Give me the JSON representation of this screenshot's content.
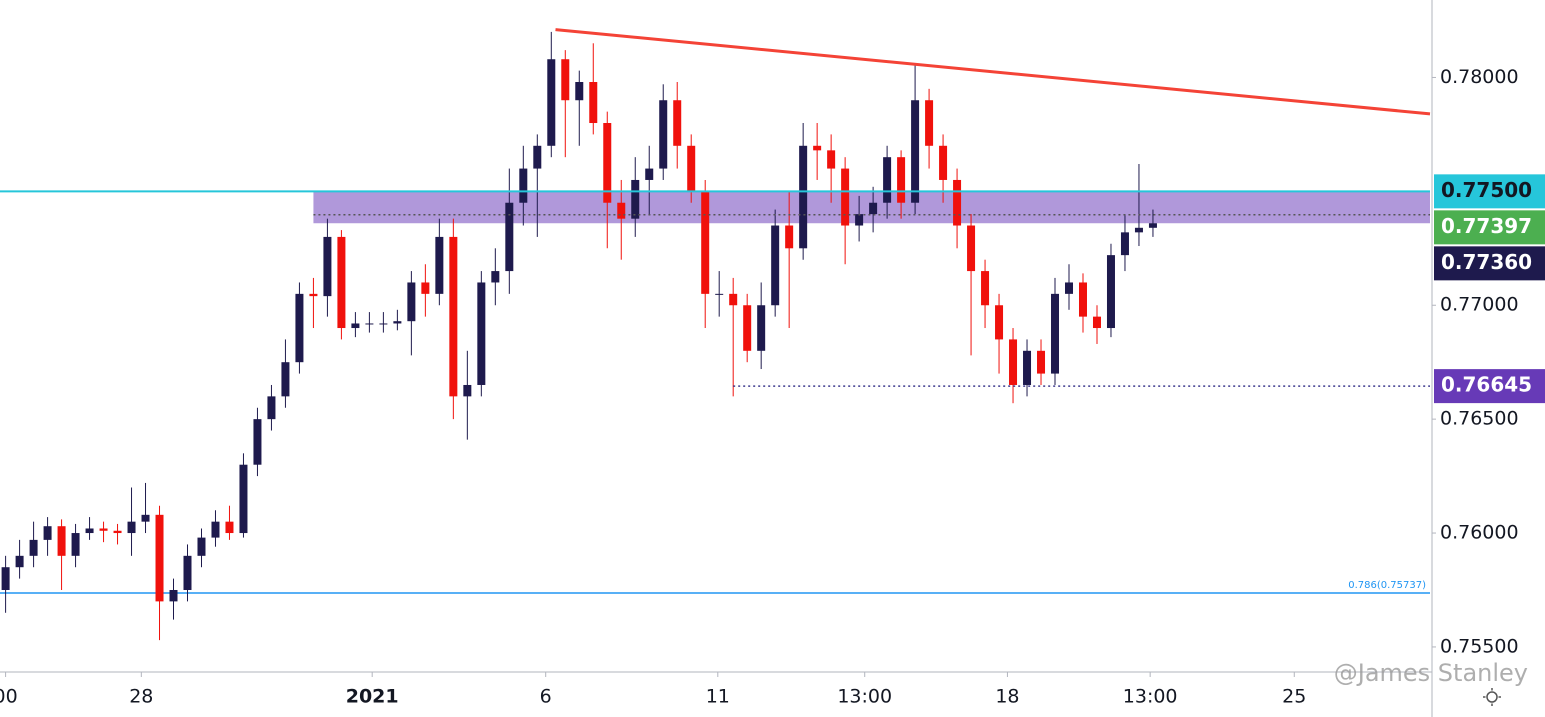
{
  "chart_data": {
    "type": "candlestick",
    "open": [
      0.7575,
      0.7585,
      0.759,
      0.7597,
      0.7603,
      0.759,
      0.76,
      0.7602,
      0.7601,
      0.76,
      0.7605,
      0.7608,
      0.757,
      0.7575,
      0.759,
      0.7598,
      0.7605,
      0.76,
      0.763,
      0.765,
      0.766,
      0.7675,
      0.7705,
      0.7704,
      0.773,
      0.769,
      0.7692,
      0.7692,
      0.7692,
      0.7693,
      0.771,
      0.7705,
      0.773,
      0.766,
      0.7665,
      0.771,
      0.7715,
      0.7745,
      0.776,
      0.777,
      0.7808,
      0.779,
      0.7798,
      0.778,
      0.7745,
      0.7738,
      0.7755,
      0.776,
      0.779,
      0.777,
      0.775,
      0.7705,
      0.7705,
      0.77,
      0.768,
      0.77,
      0.7735,
      0.7725,
      0.777,
      0.7768,
      0.776,
      0.7735,
      0.774,
      0.7745,
      0.7765,
      0.7745,
      0.779,
      0.777,
      0.7755,
      0.7735,
      0.7715,
      0.77,
      0.7685,
      0.7665,
      0.768,
      0.767,
      0.7705,
      0.771,
      0.7695,
      0.769,
      0.7722,
      0.7732,
      0.7734
    ],
    "high": [
      0.759,
      0.7597,
      0.7605,
      0.7607,
      0.7606,
      0.7604,
      0.7607,
      0.7605,
      0.7604,
      0.762,
      0.7622,
      0.7612,
      0.758,
      0.7595,
      0.7602,
      0.761,
      0.7612,
      0.7635,
      0.7655,
      0.7665,
      0.7685,
      0.771,
      0.7712,
      0.7738,
      0.7733,
      0.7697,
      0.7697,
      0.7697,
      0.7698,
      0.7715,
      0.7718,
      0.7738,
      0.7738,
      0.768,
      0.7715,
      0.7725,
      0.776,
      0.777,
      0.7775,
      0.782,
      0.7812,
      0.7803,
      0.7815,
      0.7785,
      0.7755,
      0.7765,
      0.777,
      0.7797,
      0.7798,
      0.7775,
      0.7755,
      0.7715,
      0.7712,
      0.7705,
      0.771,
      0.7742,
      0.775,
      0.778,
      0.778,
      0.7775,
      0.7765,
      0.7748,
      0.7752,
      0.777,
      0.7768,
      0.7806,
      0.7795,
      0.7775,
      0.776,
      0.774,
      0.772,
      0.7705,
      0.769,
      0.7685,
      0.7685,
      0.7712,
      0.7718,
      0.7714,
      0.77,
      0.7727,
      0.774,
      0.7762,
      0.7742
    ],
    "low": [
      0.7565,
      0.758,
      0.7585,
      0.759,
      0.7575,
      0.7585,
      0.7597,
      0.7596,
      0.7595,
      0.759,
      0.76,
      0.7553,
      0.7562,
      0.757,
      0.7585,
      0.7594,
      0.7597,
      0.7598,
      0.7625,
      0.7645,
      0.7655,
      0.767,
      0.769,
      0.7695,
      0.7685,
      0.7686,
      0.7688,
      0.7688,
      0.7689,
      0.7678,
      0.7695,
      0.77,
      0.765,
      0.7641,
      0.766,
      0.77,
      0.7705,
      0.7735,
      0.773,
      0.7765,
      0.7765,
      0.777,
      0.7775,
      0.7725,
      0.772,
      0.773,
      0.774,
      0.7755,
      0.776,
      0.7745,
      0.769,
      0.7695,
      0.766,
      0.7675,
      0.7672,
      0.7695,
      0.769,
      0.772,
      0.7755,
      0.7745,
      0.7718,
      0.7728,
      0.7732,
      0.7738,
      0.7738,
      0.774,
      0.776,
      0.7745,
      0.7725,
      0.7678,
      0.769,
      0.767,
      0.7657,
      0.766,
      0.7665,
      0.7665,
      0.7698,
      0.7688,
      0.7683,
      0.7686,
      0.7715,
      0.7726,
      0.773
    ],
    "close": [
      0.7585,
      0.759,
      0.7597,
      0.7603,
      0.759,
      0.76,
      0.7602,
      0.7601,
      0.76,
      0.7605,
      0.7608,
      0.757,
      0.7575,
      0.759,
      0.7598,
      0.7605,
      0.76,
      0.763,
      0.765,
      0.766,
      0.7675,
      0.7705,
      0.7704,
      0.773,
      0.769,
      0.7692,
      0.7692,
      0.7692,
      0.7693,
      0.771,
      0.7705,
      0.773,
      0.766,
      0.7665,
      0.771,
      0.7715,
      0.7745,
      0.776,
      0.777,
      0.7808,
      0.779,
      0.7798,
      0.778,
      0.7745,
      0.7738,
      0.7755,
      0.776,
      0.779,
      0.777,
      0.775,
      0.7705,
      0.7705,
      0.77,
      0.768,
      0.77,
      0.7735,
      0.7725,
      0.777,
      0.7768,
      0.776,
      0.7735,
      0.774,
      0.7745,
      0.7765,
      0.7745,
      0.779,
      0.777,
      0.7755,
      0.7735,
      0.7715,
      0.77,
      0.7685,
      0.7665,
      0.768,
      0.767,
      0.7705,
      0.771,
      0.7695,
      0.769,
      0.7722,
      0.7732,
      0.7734,
      0.7736
    ],
    "up_color": "#1e1a4d",
    "down_color": "#f0110c",
    "xlim": [
      -0.4,
      101.8
    ],
    "ylim": [
      0.7539,
      0.7834
    ],
    "xticks": [
      {
        "value": 0,
        "label": "00"
      },
      {
        "value": 9.7,
        "label": "28"
      },
      {
        "value": 26.2,
        "label": "2021",
        "bold": true
      },
      {
        "value": 38.6,
        "label": "6"
      },
      {
        "value": 50.9,
        "label": "11"
      },
      {
        "value": 61.4,
        "label": "13:00"
      },
      {
        "value": 71.6,
        "label": "18"
      },
      {
        "value": 81.8,
        "label": "13:00"
      },
      {
        "value": 92.1,
        "label": "25"
      }
    ],
    "yticks": [
      {
        "value": 0.78,
        "label": "0.78000"
      },
      {
        "value": 0.77,
        "label": "0.77000"
      },
      {
        "value": 0.765,
        "label": "0.76500"
      },
      {
        "value": 0.76,
        "label": "0.76000"
      },
      {
        "value": 0.755,
        "label": "0.75500"
      }
    ],
    "trendline": {
      "x": [
        39.3,
        101.8
      ],
      "y": [
        0.7821,
        0.7784
      ],
      "color": "#f44336"
    },
    "zone": {
      "from": 0.7736,
      "to": 0.775,
      "start": 22,
      "color": "#9575cd"
    },
    "resistance": {
      "value": 0.775,
      "color": "#26c6da"
    },
    "dotted_levels": [
      {
        "value": 0.77397,
        "start": 22,
        "color": "#555"
      },
      {
        "value": 0.76645,
        "start": 52,
        "color": "#3f3a8f"
      }
    ],
    "fib": {
      "value": 0.75737,
      "label": "0.786(0.75737)",
      "color": "#2196f3"
    },
    "price_tags": [
      {
        "value": 0.775,
        "label": "0.77500",
        "color": "#26c6da",
        "text_color": "#131722"
      },
      {
        "value": 0.77397,
        "label": "0.77397",
        "color": "#4caf50",
        "text_color": "#ffffff"
      },
      {
        "value": 0.7736,
        "label": "0.77360",
        "color": "#1e1a4d",
        "text_color": "#ffffff"
      },
      {
        "value": 0.76645,
        "label": "0.76645",
        "color": "#673ab7",
        "text_color": "#ffffff"
      }
    ],
    "watermark": "@James Stanley"
  }
}
